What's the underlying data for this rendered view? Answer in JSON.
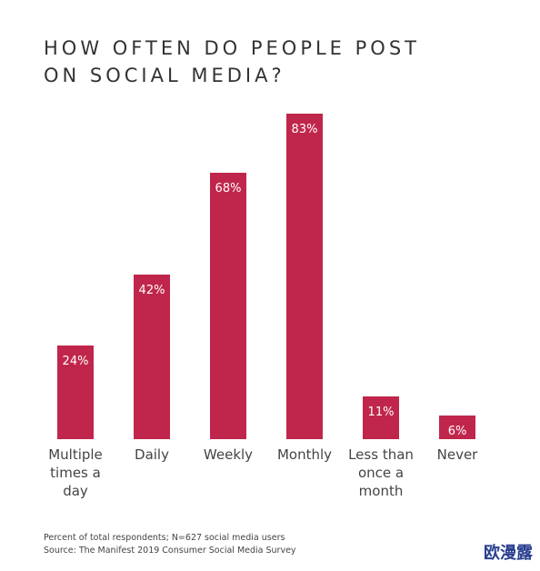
{
  "chart_data": {
    "type": "bar",
    "title": "HOW OFTEN DO PEOPLE POST ON SOCIAL MEDIA?",
    "categories": [
      "Multiple times a day",
      "Daily",
      "Weekly",
      "Monthly",
      "Less than once a month",
      "Never"
    ],
    "values": [
      24,
      42,
      68,
      83,
      11,
      6
    ],
    "value_labels": [
      "24%",
      "42%",
      "68%",
      "83%",
      "11%",
      "6%"
    ],
    "color": "#c0264b",
    "notes": [
      "Percent of total respondents; N=627 social media users",
      "Source: The Manifest 2019 Consumer Social Media Survey"
    ]
  },
  "watermark": "欧漫露"
}
